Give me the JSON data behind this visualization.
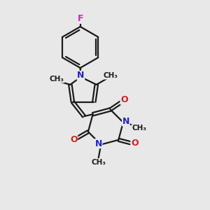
{
  "background_color": "#e8e8e8",
  "line_color": "#1a1a1a",
  "bond_width": 1.6,
  "N_color": "#2222cc",
  "O_color": "#cc2222",
  "F_color": "#cc22cc",
  "figsize": [
    3.0,
    3.0
  ],
  "dpi": 100,
  "xlim": [
    0,
    10
  ],
  "ylim": [
    0,
    10
  ]
}
